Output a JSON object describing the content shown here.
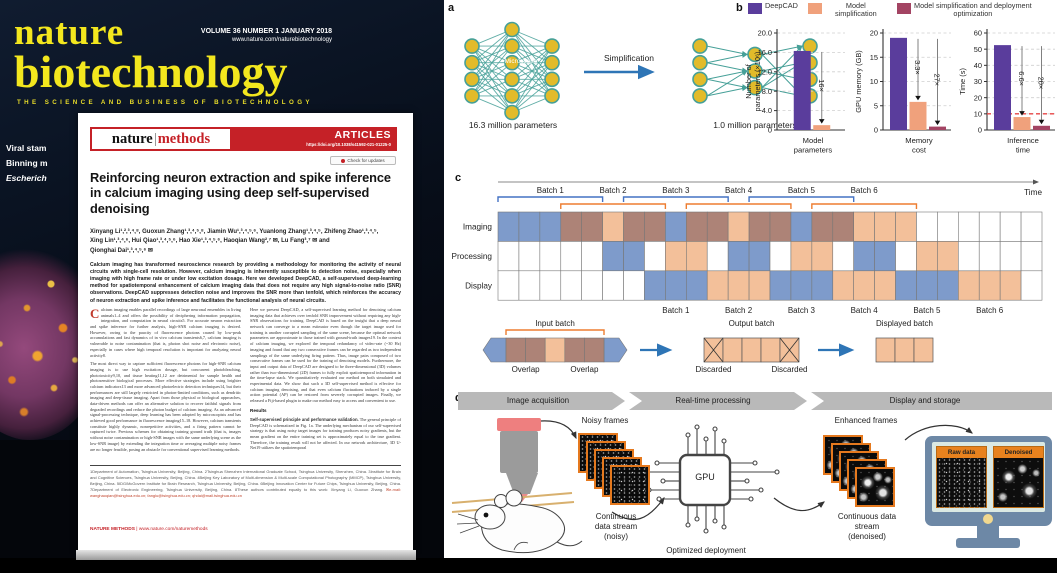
{
  "cover": {
    "title_line1": "nature",
    "title_line2": "biotechnology",
    "tagline": "THE SCIENCE AND BUSINESS OF BIOTECHNOLOGY",
    "issue_info": "VOLUME 36 NUMBER 1 JANUARY 2018",
    "website": "www.nature.com/naturebiotechnology",
    "headlines": [
      "Viral stam",
      "Binning m",
      "Escherich"
    ],
    "accent_yellow": "#f3e71e"
  },
  "article": {
    "logo_nature": "nature",
    "logo_methods": "methods",
    "banner_label": "ARTICLES",
    "doi": "https://doi.org/10.1038/s41592-021-01225-0",
    "check_updates_label": "Check for updates",
    "accent_red": "#c52127",
    "title": "Reinforcing neuron extraction and spike inference in calcium imaging using deep self-supervised denoising",
    "author_lines": [
      "Xinyang Li¹,²,³,⁴,⁸, Guoxun Zhang¹,³,⁴,⁵,⁸, Jiamin Wu¹,³,⁴,⁵,⁶, Yuanlong Zhang¹,³,⁴,⁵, Zhifeng Zhao¹,³,⁴,⁵,",
      "Xing Lin¹,³,⁴,⁶, Hui Qiao¹,³,⁴,⁵,⁶, Hao Xie¹,³,⁴,⁵,⁶, Haoqian Wang²,⁷ ✉, Lu Fang³,⁷ ✉ and",
      "Qionghai Dai¹,³,⁴,⁵,⁶ ✉"
    ],
    "abstract": "Calcium imaging has transformed neuroscience research by providing a methodology for monitoring the activity of neural circuits with single-cell resolution. However, calcium imaging is inherently susceptible to detection noise, especially when imaging with high frame rate or under low excitation dosage. Here we developed DeepCAD, a self-supervised deep-learning method for spatiotemporal enhancement of calcium imaging data that does not require any high signal-to-noise ratio (SNR) observations. DeepCAD suppresses detection noise and improves the SNR more than tenfold, which reinforces the accuracy of neuron extraction and spike inference and facilitates the functional analysis of neural circuits.",
    "dropcap": "C",
    "col1_para1": "alcium imaging enables parallel recordings of large neuronal ensembles in living animals1–4 and offers the possibility of deciphering information propagation, integration, and computation in neural circuits5. For accurate neuron extraction and spike inference for further analysis, high-SNR calcium imaging is desired. However, owing to the paucity of fluorescence photons caused by low-peak accumulations and fast dynamics of in vivo calcium transients6,7, calcium imaging is vulnerable to noise contamination (that is, photon shot noise and electronic noise), especially in cases where high temporal resolution is important for analyzing neural activity8.",
    "col1_para2": "The most direct way to capture sufficient fluorescence photons for high-SNR calcium imaging is to use high excitation dosage, but concurrent photobleaching, phototoxicity9,10, and tissue heating11,12 are detrimental for sample health and photosensitive biological processes. More effective strategies include using brighter calcium indicators13 and more advanced photoelectric detection techniques14, but their performances are still largely restricted in photon-limited conditions, such as dendritic imaging and deep-tissue imaging. Apart from those physical or biological approaches, data-driven methods can offer an alternative solution to recover faithful signals from degraded recordings and reduce the photon budget of calcium imaging. As an advanced signal-processing technique, deep learning has been adopted by microscopists and has achieved good performance in fluorescence imaging15–18. However, calcium transients constitute highly dynamic, nonrepetitive activities, and a firing pattern cannot be captured twice. Previous schemes for obtaining training ground truth (that is, images without noise contamination or high-SNR images with the same underlying scene as the low-SNR image) by extending the integration time or averaging multiple noisy frames are no longer feasible, posing an obstacle for conventional supervised learning methods.",
    "col2_para1": "Here we present DeepCAD, a self-supervised learning method for denoising calcium imaging data that achieves over tenfold SNR improvement without requiring any high-SNR observations for training. DeepCAD is based on the insight that a deep neural network can converge to a mean estimator even though the target image used for training is another corrupted sampling of the same scene, because the optimal network parameters are approximate to those trained with ground-truth images19. In the context of calcium imaging, we explored the temporal redundancy of video-rate (~30 Hz) imaging and found that any two consecutive frames can be regarded as two independent samplings of the same underlying firing pattern. Thus, image pairs composed of two consecutive frames can be used for the training of denoising models. Furthermore, the input and output data of DeepCAD are designed to be three-dimensional (3D) volumes rather than two-dimensional (2D) frames to fully exploit spatiotemporal information in the time-lapse stack. We quantitatively evaluated our method on both simulated and experimental data. We show that such a 3D self-supervised method is effective for calcium imaging denoising, and that even calcium fluctuations induced by a single action potential (AP) can be restored from severely corrupted images. Finally, we released a Fiji-based plugin to make our method easy to access and convenient to use.",
    "results_heading": "Results",
    "results_lead": "Self-supervised principle and performance validation.",
    "results_text": " The general principle of DeepCAD is schematized in Fig. 1a. The underlying mechanism of our self-supervised strategy is that using noisy target images for training produces noisy gradients, but the mean gradient on the entire training set is approximately equal to the true gradient. Therefore, the training result will not be affected. In our network architecture, 3D U-Net19 utilizes the spatiotemporal",
    "affiliations": "1Department of Automation, Tsinghua University, Beijing, China. 2Tsinghua Shenzhen International Graduate School, Tsinghua University, Shenzhen, China. 3Institute for Brain and Cognitive Sciences, Tsinghua University, Beijing, China. 4Beijing Key Laboratory of Multi-dimension & Multi-scale Computational Photography (MMCP), Tsinghua University, Beijing, China. 5IDG/McGovern Institute for Brain Research, Tsinghua University, Beijing, China. 6Beijing Innovation Center for Future Chips, Tsinghua University, Beijing, China. 7Department of Electronic Engineering, Tsinghua University, Beijing, China. 8These authors contributed equally to this work: Xinyang Li, Guoxun Zhang. ",
    "affil_emails": "✉e-mail: wanghaoqian@tsinghua.edu.cn; fanglu@tsinghua.edu.cn; qhdai@mail.tsinghua.edu.cn",
    "footer_journal": "NATURE METHODS",
    "footer_url": " | www.nature.com/naturemethods"
  },
  "figure": {
    "panel_a": {
      "label": "a",
      "left_layers": [
        4,
        6,
        4
      ],
      "right_layers": [
        4,
        3,
        4
      ],
      "left_caption": "16.3 million parameters",
      "arrow_label": "Simplification",
      "right_caption": "1.0 million parameters",
      "node_color": "#e2bb2a",
      "edge_color": "#46a098"
    },
    "panel_b": {
      "label": "b",
      "legend": [
        {
          "label": "DeepCAD",
          "color": "#5a3d9c"
        },
        {
          "label": "Model simplification",
          "color": "#f0a17c"
        },
        {
          "label": "Model simplification and deployment optimization",
          "color": "#a34463"
        }
      ]
    },
    "panel_c": {
      "label": "c",
      "time_label": "Time",
      "batch_labels": [
        "Batch 1",
        "Batch 2",
        "Batch 3",
        "Batch 4",
        "Batch 5",
        "Batch 6"
      ],
      "row_labels": [
        "Imaging",
        "Processing",
        "Display"
      ],
      "num_columns": 26,
      "batch_size": 5,
      "batch_stride": 3,
      "processing_duration": 2,
      "display_duration": 3,
      "colors": {
        "blue": "#7e9bcb",
        "orange": "#f3c09a",
        "overlap": "#ad8377",
        "bracket_blue": "#4472c4",
        "bracket_orange": "#ed7d31"
      },
      "sub_labels": {
        "input": "Input batch",
        "overlap": "Overlap",
        "output": "Output batch",
        "discarded": "Discarded",
        "displayed": "Displayed batch"
      }
    },
    "panel_d": {
      "label": "d",
      "stages": [
        "Image acquisition",
        "Real-time processing",
        "Display and storage"
      ],
      "microscope_label": "Microscope",
      "noisy_frames_label": "Noisy frames",
      "stream_noisy_label": "Continuous data stream (noisy)",
      "gpu_label": "GPU",
      "optimized_label": "Optimized deployment",
      "enhanced_frames_label": "Enhanced frames",
      "stream_denoised_label": "Continuous data stream (denoised)",
      "raw_label": "Raw data",
      "denoised_label": "Denoised",
      "frame_border_color": "#e5791e"
    }
  },
  "chart_data": [
    {
      "type": "bar",
      "title_lines": [
        "Model",
        "parameters"
      ],
      "ylabel_lines": [
        "Number of",
        "parameters (×10⁶)"
      ],
      "ylim": [
        0,
        20
      ],
      "yticks": [
        0,
        4,
        8,
        12,
        16,
        20
      ],
      "ytick_labels": [
        "0",
        "4.0",
        "8.0",
        "12.0",
        "16.0",
        "20.0"
      ],
      "series": [
        {
          "name": "DeepCAD",
          "value": 16.3,
          "color": "#5a3d9c"
        },
        {
          "name": "Model simplification",
          "value": 1.0,
          "color": "#f0a17c"
        }
      ],
      "annotations": [
        "16×"
      ]
    },
    {
      "type": "bar",
      "title_lines": [
        "Memory",
        "cost"
      ],
      "ylabel_lines": [
        "GPU memory (GB)"
      ],
      "ylim": [
        0,
        20
      ],
      "yticks": [
        0,
        5,
        10,
        15,
        20
      ],
      "ytick_labels": [
        "0",
        "5",
        "10",
        "15",
        "20"
      ],
      "series": [
        {
          "name": "DeepCAD",
          "value": 19,
          "color": "#5a3d9c"
        },
        {
          "name": "Model simplification",
          "value": 5.8,
          "color": "#f0a17c"
        },
        {
          "name": "Model simplification and deployment optimization",
          "value": 0.7,
          "color": "#a34463"
        }
      ],
      "annotations": [
        "3.3×",
        "27×"
      ]
    },
    {
      "type": "bar",
      "title_lines": [
        "Inference",
        "time"
      ],
      "ylabel_lines": [
        "Time (s)"
      ],
      "ylim": [
        0,
        60
      ],
      "yticks": [
        0,
        10,
        20,
        30,
        40,
        50,
        60
      ],
      "ytick_labels": [
        "0",
        "10",
        "20",
        "30",
        "40",
        "50",
        "60"
      ],
      "series": [
        {
          "name": "DeepCAD",
          "value": 52.5,
          "color": "#5a3d9c"
        },
        {
          "name": "Model simplification",
          "value": 8,
          "color": "#f0a17c"
        },
        {
          "name": "Model simplification and deployment optimization",
          "value": 2.6,
          "color": "#a34463"
        }
      ],
      "annotations": [
        "6.6×",
        "20×"
      ],
      "ref_line": 10,
      "ref_color": "#e84545"
    }
  ]
}
